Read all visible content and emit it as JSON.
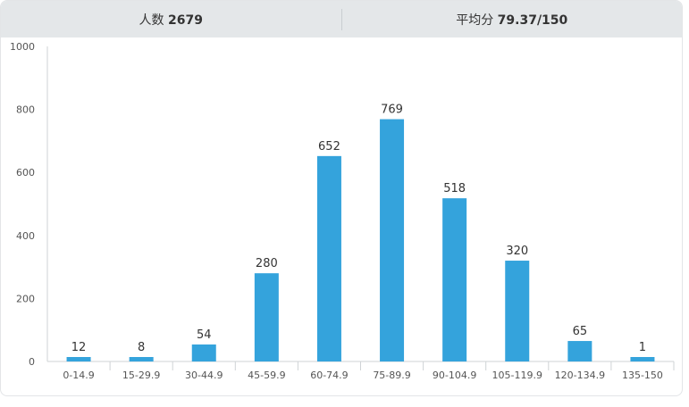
{
  "header": {
    "count_label": "人数",
    "count_value": "2679",
    "avg_label": "平均分",
    "avg_value": "79.37/150"
  },
  "colors": {
    "bar": "#34a3dc",
    "axis": "#cfd3d6",
    "text": "#333333",
    "tick": "#555555"
  },
  "chart_data": {
    "type": "bar",
    "categories": [
      "0-14.9",
      "15-29.9",
      "30-44.9",
      "45-59.9",
      "60-74.9",
      "75-89.9",
      "90-104.9",
      "105-119.9",
      "120-134.9",
      "135-150"
    ],
    "values": [
      12,
      8,
      54,
      280,
      652,
      769,
      518,
      320,
      65,
      1
    ],
    "ylim": [
      0,
      1000
    ],
    "yticks": [
      0,
      200,
      400,
      600,
      800,
      1000
    ],
    "grid": false,
    "data_labels": true
  }
}
